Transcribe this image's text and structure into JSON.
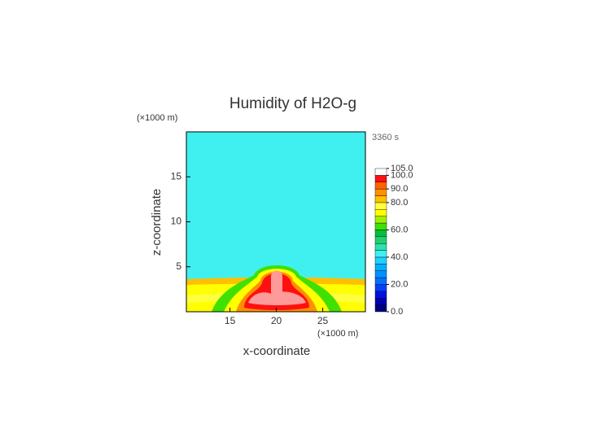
{
  "chart_data": {
    "type": "contour",
    "title": "Humidity of H2O-g",
    "time_label": "3360 s",
    "x_label": "x-coordinate",
    "y_label": "z-coordinate",
    "x_unit": "(×1000 m)",
    "y_unit": "(×1000 m)",
    "xlim": [
      10.3,
      29.6
    ],
    "xticks": [
      15,
      20,
      25
    ],
    "ylim": [
      0,
      20
    ],
    "yticks": [
      5,
      10,
      15
    ],
    "levels": [
      0,
      5,
      10,
      15,
      20,
      25,
      30,
      35,
      40,
      45,
      50,
      55,
      60,
      65,
      70,
      75,
      80,
      85,
      90,
      95,
      100,
      105
    ],
    "colors": [
      "#000080",
      "#0000b0",
      "#0010e0",
      "#0040ff",
      "#0070ff",
      "#0090ff",
      "#00b0ff",
      "#20d0ff",
      "#40f0f0",
      "#30e0b0",
      "#20d070",
      "#00c040",
      "#40e000",
      "#a0f000",
      "#ffff00",
      "#ffff40",
      "#ffc000",
      "#ff9000",
      "#ff6000",
      "#ff1010",
      "#ffffff"
    ],
    "cticks": [
      {
        "value": 0,
        "label": "0.0"
      },
      {
        "value": 20,
        "label": "20.0"
      },
      {
        "value": 40,
        "label": "40.0"
      },
      {
        "value": 60,
        "label": "60.0"
      },
      {
        "value": 80,
        "label": "80.0"
      },
      {
        "value": 90,
        "label": "90.0"
      },
      {
        "value": 100,
        "label": "100.0"
      },
      {
        "value": 105,
        "label": "105.0"
      }
    ]
  }
}
